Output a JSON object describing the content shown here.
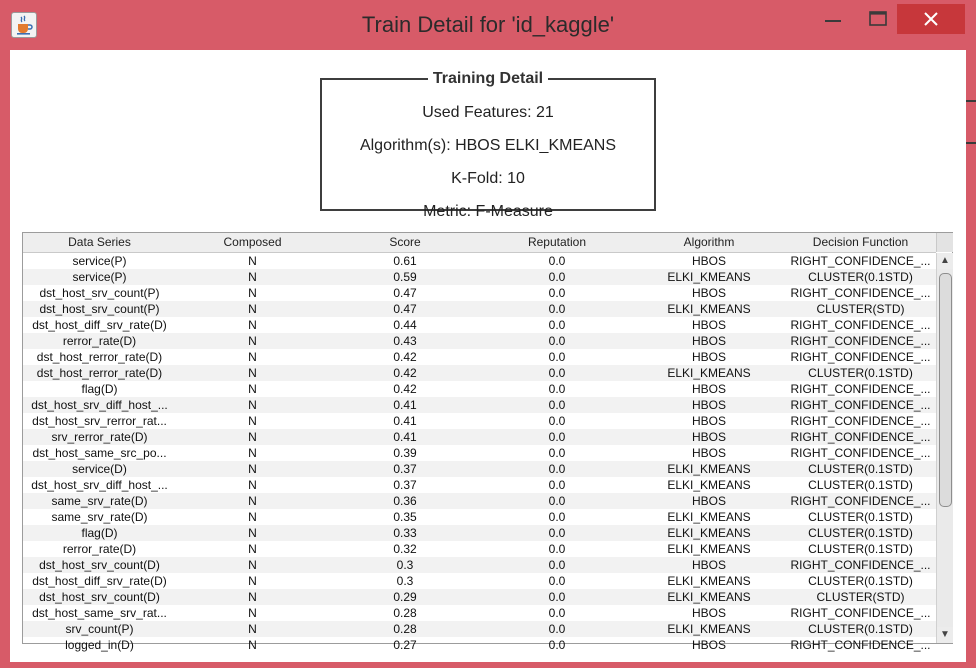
{
  "window": {
    "title": "Train Detail for 'id_kaggle'",
    "minimize_icon": "minimize-icon",
    "maximize_icon": "maximize-icon",
    "close_icon": "close-icon",
    "app_icon": "java-cup-icon"
  },
  "training_detail": {
    "legend": "Training Detail",
    "used_features": "Used Features: 21",
    "algorithms": "Algorithm(s): HBOS ELKI_KMEANS",
    "kfold": "K-Fold: 10",
    "metric": "Metric: F-Measure"
  },
  "table": {
    "headers": [
      "Data Series",
      "Composed",
      "Score",
      "Reputation",
      "Algorithm",
      "Decision Function"
    ],
    "rows": [
      [
        "service(P)",
        "N",
        "0.61",
        "0.0",
        "HBOS",
        "RIGHT_CONFIDENCE_..."
      ],
      [
        "service(P)",
        "N",
        "0.59",
        "0.0",
        "ELKI_KMEANS",
        "CLUSTER(0.1STD)"
      ],
      [
        "dst_host_srv_count(P)",
        "N",
        "0.47",
        "0.0",
        "HBOS",
        "RIGHT_CONFIDENCE_..."
      ],
      [
        "dst_host_srv_count(P)",
        "N",
        "0.47",
        "0.0",
        "ELKI_KMEANS",
        "CLUSTER(STD)"
      ],
      [
        "dst_host_diff_srv_rate(D)",
        "N",
        "0.44",
        "0.0",
        "HBOS",
        "RIGHT_CONFIDENCE_..."
      ],
      [
        "rerror_rate(D)",
        "N",
        "0.43",
        "0.0",
        "HBOS",
        "RIGHT_CONFIDENCE_..."
      ],
      [
        "dst_host_rerror_rate(D)",
        "N",
        "0.42",
        "0.0",
        "HBOS",
        "RIGHT_CONFIDENCE_..."
      ],
      [
        "dst_host_rerror_rate(D)",
        "N",
        "0.42",
        "0.0",
        "ELKI_KMEANS",
        "CLUSTER(0.1STD)"
      ],
      [
        "flag(D)",
        "N",
        "0.42",
        "0.0",
        "HBOS",
        "RIGHT_CONFIDENCE_..."
      ],
      [
        "dst_host_srv_diff_host_...",
        "N",
        "0.41",
        "0.0",
        "HBOS",
        "RIGHT_CONFIDENCE_..."
      ],
      [
        "dst_host_srv_rerror_rat...",
        "N",
        "0.41",
        "0.0",
        "HBOS",
        "RIGHT_CONFIDENCE_..."
      ],
      [
        "srv_rerror_rate(D)",
        "N",
        "0.41",
        "0.0",
        "HBOS",
        "RIGHT_CONFIDENCE_..."
      ],
      [
        "dst_host_same_src_po...",
        "N",
        "0.39",
        "0.0",
        "HBOS",
        "RIGHT_CONFIDENCE_..."
      ],
      [
        "service(D)",
        "N",
        "0.37",
        "0.0",
        "ELKI_KMEANS",
        "CLUSTER(0.1STD)"
      ],
      [
        "dst_host_srv_diff_host_...",
        "N",
        "0.37",
        "0.0",
        "ELKI_KMEANS",
        "CLUSTER(0.1STD)"
      ],
      [
        "same_srv_rate(D)",
        "N",
        "0.36",
        "0.0",
        "HBOS",
        "RIGHT_CONFIDENCE_..."
      ],
      [
        "same_srv_rate(D)",
        "N",
        "0.35",
        "0.0",
        "ELKI_KMEANS",
        "CLUSTER(0.1STD)"
      ],
      [
        "flag(D)",
        "N",
        "0.33",
        "0.0",
        "ELKI_KMEANS",
        "CLUSTER(0.1STD)"
      ],
      [
        "rerror_rate(D)",
        "N",
        "0.32",
        "0.0",
        "ELKI_KMEANS",
        "CLUSTER(0.1STD)"
      ],
      [
        "dst_host_srv_count(D)",
        "N",
        "0.3",
        "0.0",
        "HBOS",
        "RIGHT_CONFIDENCE_..."
      ],
      [
        "dst_host_diff_srv_rate(D)",
        "N",
        "0.3",
        "0.0",
        "ELKI_KMEANS",
        "CLUSTER(0.1STD)"
      ],
      [
        "dst_host_srv_count(D)",
        "N",
        "0.29",
        "0.0",
        "ELKI_KMEANS",
        "CLUSTER(STD)"
      ],
      [
        "dst_host_same_srv_rat...",
        "N",
        "0.28",
        "0.0",
        "HBOS",
        "RIGHT_CONFIDENCE_..."
      ],
      [
        "srv_count(P)",
        "N",
        "0.28",
        "0.0",
        "ELKI_KMEANS",
        "CLUSTER(0.1STD)"
      ],
      [
        "logged_in(D)",
        "N",
        "0.27",
        "0.0",
        "HBOS",
        "RIGHT_CONFIDENCE_..."
      ]
    ]
  },
  "scrollbar": {
    "up_icon": "scroll-up-arrow-icon",
    "down_icon": "scroll-down-arrow-icon"
  }
}
